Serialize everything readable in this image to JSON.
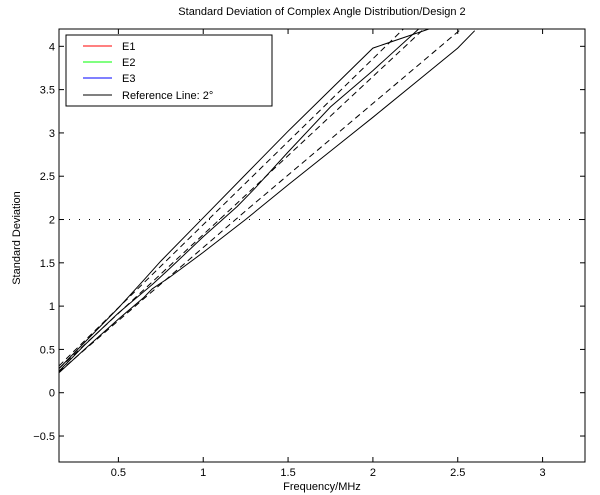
{
  "chart_data": {
    "type": "line",
    "title": "Standard Deviation of Complex Angle Distribution/Design 2",
    "xlabel": "Frequency/MHz",
    "ylabel": "Standard Deviation",
    "xlim": [
      0.15,
      3.25
    ],
    "ylim": [
      -0.8,
      4.2
    ],
    "xticks": [
      0.5,
      1,
      1.5,
      2,
      2.5,
      3
    ],
    "xtick_labels": [
      "0.5",
      "1",
      "1.5",
      "2",
      "2.5",
      "3"
    ],
    "yticks": [
      -0.5,
      0,
      0.5,
      1,
      1.5,
      2,
      2.5,
      3,
      3.5,
      4
    ],
    "ytick_labels": [
      "−0.5",
      "0",
      "0.5",
      "1",
      "1.5",
      "2",
      "2.5",
      "3",
      "3.5",
      "4"
    ],
    "reference_line": {
      "y": 2,
      "style": "dotted"
    },
    "legend": {
      "position": "top-left",
      "entries": [
        {
          "label": "E1",
          "color": "#ff0000"
        },
        {
          "label": "E2",
          "color": "#00ff00"
        },
        {
          "label": "E3",
          "color": "#0000ff"
        },
        {
          "label": "Reference Line: 2°",
          "color": "#000000"
        }
      ]
    },
    "series": [
      {
        "style": "solid",
        "color": "#000000",
        "x": [
          0.15,
          0.3,
          0.5,
          0.65,
          0.75,
          1.0,
          1.25,
          1.5,
          1.75,
          2.0,
          2.33
        ],
        "y": [
          0.28,
          0.58,
          0.98,
          1.3,
          1.52,
          2.02,
          2.52,
          3.02,
          3.5,
          3.98,
          4.2
        ]
      },
      {
        "style": "solid",
        "color": "#000000",
        "x": [
          0.15,
          0.3,
          0.5,
          0.7,
          0.8,
          1.0,
          1.2,
          1.3,
          1.5,
          1.75,
          2.0,
          2.27
        ],
        "y": [
          0.25,
          0.55,
          0.92,
          1.25,
          1.43,
          1.8,
          2.15,
          2.35,
          2.78,
          3.3,
          3.72,
          4.2
        ]
      },
      {
        "style": "solid",
        "color": "#000000",
        "x": [
          0.15,
          0.3,
          0.5,
          0.65,
          0.7,
          0.8,
          1.0,
          1.25,
          1.5,
          1.75,
          2.0,
          2.25,
          2.5,
          2.6
        ],
        "y": [
          0.23,
          0.5,
          0.85,
          1.1,
          1.2,
          1.33,
          1.62,
          2.0,
          2.4,
          2.79,
          3.18,
          3.58,
          3.98,
          4.18
        ]
      },
      {
        "style": "dashed",
        "color": "#000000",
        "x": [
          0.15,
          1.25,
          2.18
        ],
        "y": [
          0.31,
          2.42,
          4.2
        ]
      },
      {
        "style": "dashed",
        "color": "#000000",
        "x": [
          0.15,
          1.25,
          2.3
        ],
        "y": [
          0.28,
          2.28,
          4.2
        ]
      },
      {
        "style": "dashed",
        "color": "#000000",
        "x": [
          0.15,
          1.25,
          2.52
        ],
        "y": [
          0.24,
          2.1,
          4.2
        ]
      }
    ]
  }
}
